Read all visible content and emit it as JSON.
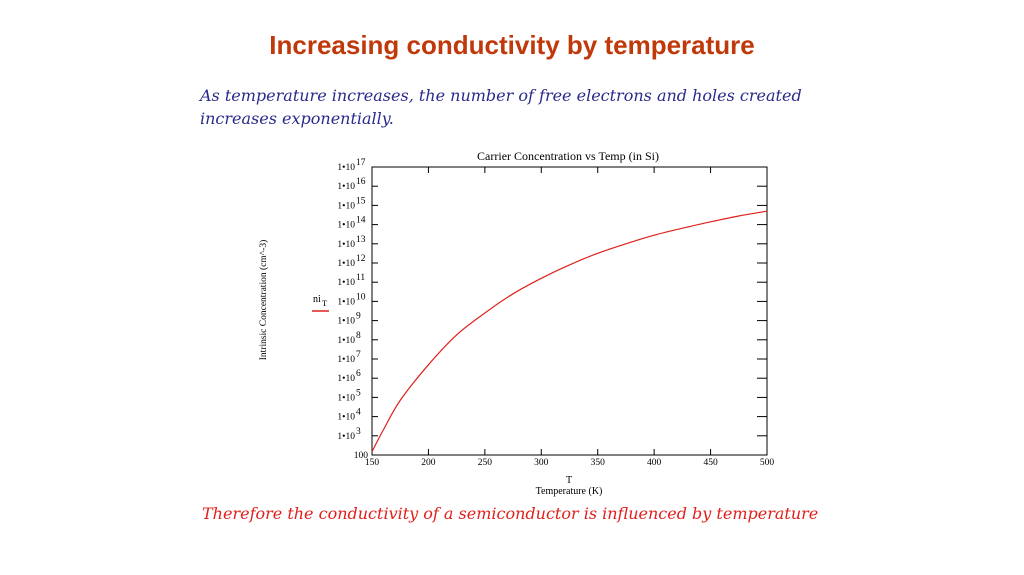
{
  "slide": {
    "title": "Increasing conductivity by temperature",
    "intro": "As temperature increases, the number of free electrons and holes created increases exponentially.",
    "conclusion": "Therefore the conductivity of a semiconductor is influenced by temperature"
  },
  "chart_data": {
    "type": "line",
    "title": "Carrier Concentration vs Temp (in Si)",
    "xlabel": "T",
    "xlabel_sub": "Temperature (K)",
    "ylabel": "Intrinsic Concentration (cm^-3)",
    "xlim": [
      150,
      500
    ],
    "ylim": [
      100,
      1e+17
    ],
    "y_scale": "log",
    "x_ticks": [
      150,
      200,
      250,
      300,
      350,
      400,
      450,
      500
    ],
    "y_ticks": [
      {
        "base": "100",
        "exp": ""
      },
      {
        "base": "1•10",
        "exp": "3"
      },
      {
        "base": "1•10",
        "exp": "4"
      },
      {
        "base": "1•10",
        "exp": "5"
      },
      {
        "base": "1•10",
        "exp": "6"
      },
      {
        "base": "1•10",
        "exp": "7"
      },
      {
        "base": "1•10",
        "exp": "8"
      },
      {
        "base": "1•10",
        "exp": "9"
      },
      {
        "base": "1•10",
        "exp": "10"
      },
      {
        "base": "1•10",
        "exp": "11"
      },
      {
        "base": "1•10",
        "exp": "12"
      },
      {
        "base": "1•10",
        "exp": "13"
      },
      {
        "base": "1•10",
        "exp": "14"
      },
      {
        "base": "1•10",
        "exp": "15"
      },
      {
        "base": "1•10",
        "exp": "16"
      },
      {
        "base": "1•10",
        "exp": "17"
      }
    ],
    "legend": {
      "label": "ni",
      "label_sub": "T",
      "placement": "left of y-axis"
    },
    "series": [
      {
        "color": "#e0201c",
        "x": [
          150,
          160,
          175,
          200,
          225,
          250,
          275,
          300,
          325,
          350,
          375,
          400,
          425,
          450,
          475,
          500
        ],
        "y": [
          150,
          2000,
          70000,
          5000000.0,
          180000000.0,
          2500000000.0,
          25000000000.0,
          160000000000.0,
          800000000000.0,
          3200000000000.0,
          10000000000000.0,
          28000000000000.0,
          65000000000000.0,
          140000000000000.0,
          280000000000000.0,
          500000000000000.0
        ]
      }
    ]
  }
}
